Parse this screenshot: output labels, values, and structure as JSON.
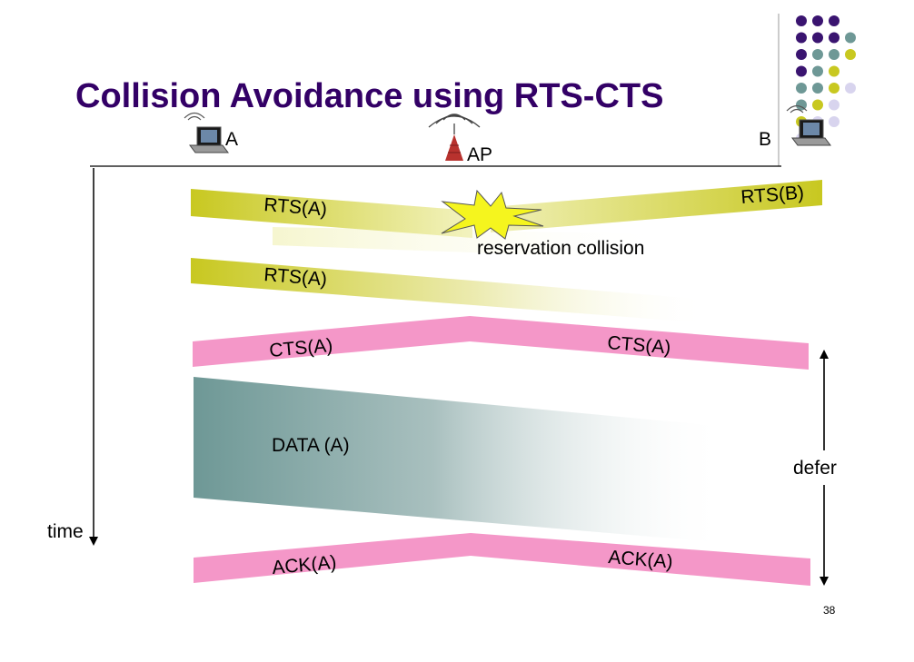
{
  "slide": {
    "title": "Collision Avoidance using RTS-CTS",
    "page_number": "38"
  },
  "nodes": {
    "a_label": "A",
    "ap_label": "AP",
    "b_label": "B"
  },
  "axis": {
    "time_label": "time"
  },
  "messages": {
    "rts_a_first": "RTS(A)",
    "rts_b": "RTS(B)",
    "collision_label": "reservation collision",
    "rts_a_second": "RTS(A)",
    "cts_a_left": "CTS(A)",
    "cts_a_right": "CTS(A)",
    "data_a": "DATA (A)",
    "ack_a_left": "ACK(A)",
    "ack_a_right": "ACK(A)"
  },
  "defer": {
    "label": "defer"
  },
  "colors": {
    "title": "#330066",
    "rts": "#c8c820",
    "cts_ack": "#f497c8",
    "data": "#6e9896",
    "dot_purple": "#3a1470",
    "dot_teal": "#6e9896",
    "dot_yellow": "#c8c820",
    "dot_lavender": "#d8d4ee"
  }
}
